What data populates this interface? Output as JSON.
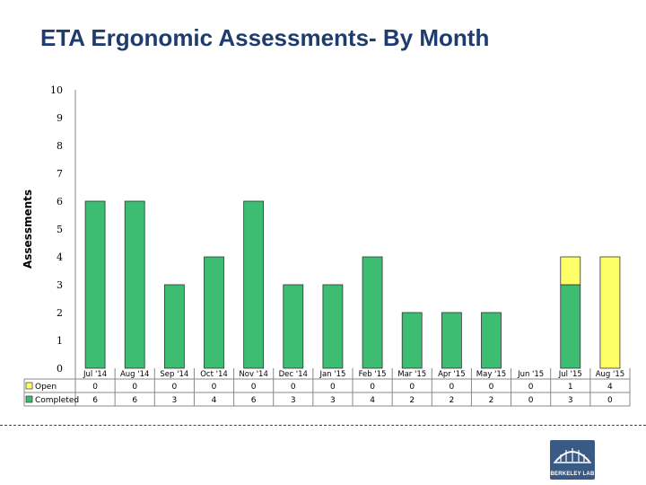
{
  "title": "ETA Ergonomic Assessments- By Month",
  "logo_text": "BERKELEY LAB",
  "colors": {
    "completed": "#3dbd72",
    "open": "#ffff66",
    "title": "#1f3c6e"
  },
  "chart_data": {
    "type": "bar",
    "stacked": true,
    "ylabel": "Assessments",
    "xlabel": "",
    "ylim": [
      0,
      10
    ],
    "yticks": [
      0,
      1,
      2,
      3,
      4,
      5,
      6,
      7,
      8,
      9,
      10
    ],
    "grid": false,
    "legend": "data-table",
    "categories": [
      "Jul '14",
      "Aug '14",
      "Sep '14",
      "Oct '14",
      "Nov '14",
      "Dec '14",
      "Jan '15",
      "Feb '15",
      "Mar '15",
      "Apr '15",
      "May '15",
      "Jun '15",
      "Jul '15",
      "Aug '15"
    ],
    "series": [
      {
        "name": "Completed",
        "color": "#3dbd72",
        "values": [
          6,
          6,
          3,
          4,
          6,
          3,
          3,
          4,
          2,
          2,
          2,
          0,
          3,
          0
        ]
      },
      {
        "name": "Open",
        "color": "#ffff66",
        "values": [
          0,
          0,
          0,
          0,
          0,
          0,
          0,
          0,
          0,
          0,
          0,
          0,
          1,
          4
        ]
      }
    ],
    "table_rows": [
      "Open",
      "Completed"
    ]
  }
}
